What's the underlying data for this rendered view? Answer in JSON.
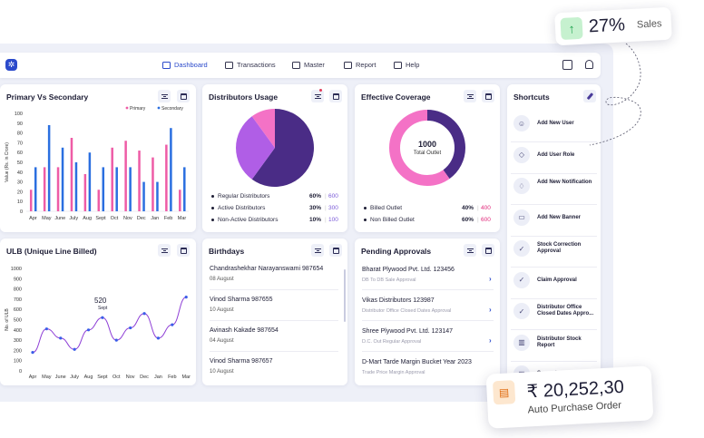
{
  "nav": {
    "items": [
      {
        "label": "Dashboard",
        "icon": "home-icon",
        "active": true
      },
      {
        "label": "Transactions",
        "icon": "transactions-icon"
      },
      {
        "label": "Master",
        "icon": "folder-icon"
      },
      {
        "label": "Report",
        "icon": "report-icon"
      },
      {
        "label": "Help",
        "icon": "help-icon"
      }
    ]
  },
  "colors": {
    "accent": "#2b4acb",
    "primary_bar": "#ee5ca6",
    "secondary_bar": "#2b6fe0",
    "purple_dark": "#4a2c86",
    "purple_light": "#b05ee6",
    "pink": "#f472c6"
  },
  "primary_vs_secondary": {
    "title": "Primary Vs Secondary",
    "chart_data": {
      "type": "bar",
      "categories": [
        "Apr",
        "May",
        "June",
        "July",
        "Aug",
        "Sept",
        "Oct",
        "Nov",
        "Dec",
        "Jan",
        "Feb",
        "Mar"
      ],
      "series": [
        {
          "name": "Primary",
          "values": [
            22,
            45,
            45,
            75,
            38,
            22,
            65,
            72,
            62,
            55,
            68,
            22
          ]
        },
        {
          "name": "Secondary",
          "values": [
            45,
            88,
            65,
            50,
            60,
            45,
            45,
            45,
            30,
            30,
            85,
            45
          ]
        }
      ],
      "ylabel": "Value (Rs. in Crore)",
      "ylim": [
        0,
        100
      ],
      "yticks": [
        0,
        10,
        20,
        30,
        40,
        50,
        60,
        70,
        80,
        90,
        100
      ]
    }
  },
  "distributors_usage": {
    "title": "Distributors Usage",
    "chart_data": {
      "type": "pie",
      "categories": [
        "Regular Distributors",
        "Active Distributors",
        "Non-Active Distributors"
      ],
      "values": [
        60,
        30,
        10
      ],
      "percent_labels": [
        "60%",
        "30%",
        "10%"
      ],
      "counts": [
        "600",
        "300",
        "100"
      ]
    }
  },
  "effective_coverage": {
    "title": "Effective Coverage",
    "center_value": "1000",
    "center_label": "Total Outlet",
    "chart_data": {
      "type": "pie",
      "categories": [
        "Billed Outlet",
        "Non Billed Outlet"
      ],
      "values": [
        40,
        60
      ],
      "percent_labels": [
        "40%",
        "60%"
      ],
      "counts": [
        "400",
        "600"
      ]
    }
  },
  "shortcuts": {
    "title": "Shortcuts",
    "items": [
      {
        "label": "Add New User",
        "icon": "user-icon"
      },
      {
        "label": "Add User Role",
        "icon": "cube-icon"
      },
      {
        "label": "Add New Notification",
        "icon": "bell-plus-icon"
      },
      {
        "label": "Add New Banner",
        "icon": "banner-icon"
      },
      {
        "label": "Stock Correction Approval",
        "icon": "check-circle-icon"
      },
      {
        "label": "Claim Approval",
        "icon": "check-circle-icon"
      },
      {
        "label": "Distributor Office Closed Dates Appro...",
        "icon": "check-circle-icon"
      },
      {
        "label": "Distributor Stock Report",
        "icon": "chart-icon"
      },
      {
        "label": "Secondary Sales",
        "icon": "chart-icon"
      }
    ]
  },
  "ulb": {
    "title": "ULB (Unique Line Billed)",
    "tooltip_value": "520",
    "tooltip_label": "Sept",
    "chart_data": {
      "type": "line",
      "categories": [
        "Apr",
        "May",
        "June",
        "July",
        "Aug",
        "Sept",
        "Oct",
        "Nov",
        "Dec",
        "Jan",
        "Feb",
        "Mar"
      ],
      "values": [
        180,
        410,
        320,
        210,
        400,
        520,
        300,
        420,
        560,
        320,
        450,
        720
      ],
      "ylabel": "No. of ULB",
      "ylim": [
        0,
        1000
      ],
      "yticks": [
        0,
        100,
        200,
        300,
        400,
        500,
        600,
        700,
        800,
        900,
        1000
      ]
    }
  },
  "birthdays": {
    "title": "Birthdays",
    "items": [
      {
        "name": "Chandrashekhar Narayanswami 987654",
        "date": "08 August"
      },
      {
        "name": "Vinod Sharma 987655",
        "date": "10 August"
      },
      {
        "name": "Avinash Kakade 987654",
        "date": "04 August"
      },
      {
        "name": "Vinod Sharma 987657",
        "date": "10 August"
      }
    ]
  },
  "pending_approvals": {
    "title": "Pending Approvals",
    "items": [
      {
        "name": "Bharat Plywood Pvt. Ltd. 123456",
        "sub": "DB To DB Sale Approval"
      },
      {
        "name": "Vikas Distributors 123987",
        "sub": "Distributor Office Closed Dates Approval"
      },
      {
        "name": "Shree Plywood Pvt. Ltd. 123147",
        "sub": "D.C. Out Regular Approval"
      },
      {
        "name": "D-Mart Tarde Margin Bucket Year 2023",
        "sub": "Trade Price Margin Approval"
      }
    ]
  },
  "sales_badge": {
    "value": "27%",
    "label": "Sales"
  },
  "auto_purchase": {
    "value": "₹ 20,252,30",
    "label": "Auto Purchase Order"
  }
}
